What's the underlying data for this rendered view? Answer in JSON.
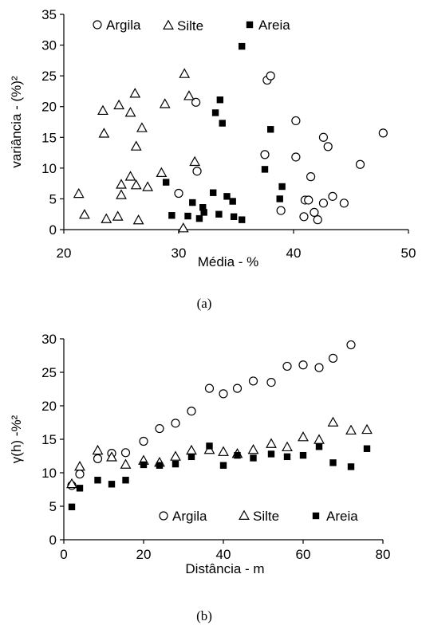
{
  "chart_data": [
    {
      "type": "scatter",
      "caption": "(a)",
      "xlabel": "Média - %",
      "ylabel": "variância - (%)²",
      "xlim": [
        20,
        50
      ],
      "ylim": [
        0,
        35
      ],
      "xticks": [
        20,
        30,
        40,
        50
      ],
      "yticks": [
        0,
        5,
        10,
        15,
        20,
        25,
        30,
        35
      ],
      "grid": false,
      "legend_position": "top",
      "series": [
        {
          "name": "Argila",
          "marker": "open-circle",
          "points": [
            [
              31.5,
              20.7
            ],
            [
              37.7,
              24.3
            ],
            [
              38.0,
              25.0
            ],
            [
              40.2,
              17.7
            ],
            [
              37.5,
              12.2
            ],
            [
              40.2,
              11.8
            ],
            [
              42.6,
              15.0
            ],
            [
              43.0,
              13.5
            ],
            [
              47.8,
              15.7
            ],
            [
              30.0,
              5.9
            ],
            [
              31.6,
              9.5
            ],
            [
              38.9,
              3.1
            ],
            [
              41.0,
              4.8
            ],
            [
              41.3,
              4.8
            ],
            [
              41.5,
              8.6
            ],
            [
              41.8,
              2.8
            ],
            [
              42.6,
              4.3
            ],
            [
              43.4,
              5.4
            ],
            [
              44.4,
              4.3
            ],
            [
              45.8,
              10.6
            ],
            [
              40.9,
              2.1
            ],
            [
              42.1,
              1.6
            ]
          ]
        },
        {
          "name": "Silte",
          "marker": "open-triangle",
          "points": [
            [
              21.3,
              5.8
            ],
            [
              21.8,
              2.4
            ],
            [
              23.4,
              19.3
            ],
            [
              23.5,
              15.6
            ],
            [
              23.7,
              1.7
            ],
            [
              24.7,
              2.1
            ],
            [
              24.8,
              20.2
            ],
            [
              25.0,
              7.3
            ],
            [
              25.0,
              5.6
            ],
            [
              25.8,
              19.0
            ],
            [
              25.8,
              8.6
            ],
            [
              26.2,
              22.1
            ],
            [
              26.3,
              7.2
            ],
            [
              26.3,
              13.5
            ],
            [
              26.5,
              1.5
            ],
            [
              26.8,
              16.5
            ],
            [
              27.3,
              6.9
            ],
            [
              28.5,
              9.2
            ],
            [
              28.8,
              20.4
            ],
            [
              30.5,
              25.3
            ],
            [
              30.9,
              21.7
            ],
            [
              31.4,
              11.0
            ],
            [
              30.4,
              0.2
            ]
          ]
        },
        {
          "name": "Areia",
          "marker": "filled-square",
          "points": [
            [
              28.9,
              7.7
            ],
            [
              29.4,
              2.3
            ],
            [
              30.8,
              2.2
            ],
            [
              31.2,
              4.4
            ],
            [
              31.8,
              1.8
            ],
            [
              32.1,
              3.6
            ],
            [
              32.2,
              2.8
            ],
            [
              33.0,
              6.0
            ],
            [
              33.2,
              19.0
            ],
            [
              33.5,
              2.5
            ],
            [
              33.6,
              21.1
            ],
            [
              33.8,
              17.3
            ],
            [
              34.2,
              5.4
            ],
            [
              34.7,
              4.6
            ],
            [
              34.8,
              2.1
            ],
            [
              35.5,
              1.6
            ],
            [
              35.5,
              29.8
            ],
            [
              37.5,
              9.8
            ],
            [
              38.0,
              16.3
            ],
            [
              38.8,
              5.0
            ],
            [
              39.0,
              7.0
            ]
          ]
        }
      ]
    },
    {
      "type": "scatter",
      "caption": "(b)",
      "xlabel": "Distância - m",
      "ylabel": "γ(h) -%²",
      "xlim": [
        0,
        80
      ],
      "ylim": [
        0,
        30
      ],
      "xticks": [
        0,
        20,
        40,
        60,
        80
      ],
      "yticks": [
        0,
        5,
        10,
        15,
        20,
        25,
        30
      ],
      "grid": false,
      "legend_position": "bottom-right",
      "series": [
        {
          "name": "Argila",
          "marker": "open-circle",
          "points": [
            [
              2,
              8.1
            ],
            [
              4,
              9.8
            ],
            [
              8.5,
              12.1
            ],
            [
              12,
              12.9
            ],
            [
              15.5,
              13.0
            ],
            [
              20,
              14.7
            ],
            [
              24,
              16.6
            ],
            [
              28,
              17.4
            ],
            [
              32,
              19.2
            ],
            [
              36.5,
              22.6
            ],
            [
              40,
              21.8
            ],
            [
              43.5,
              22.6
            ],
            [
              47.5,
              23.7
            ],
            [
              52,
              23.5
            ],
            [
              56,
              25.9
            ],
            [
              60,
              26.1
            ],
            [
              64,
              25.7
            ],
            [
              67.5,
              27.1
            ],
            [
              72,
              29.1
            ]
          ]
        },
        {
          "name": "Silte",
          "marker": "open-triangle",
          "points": [
            [
              2,
              8.3
            ],
            [
              4,
              10.9
            ],
            [
              8.5,
              13.3
            ],
            [
              12,
              12.3
            ],
            [
              15.5,
              11.2
            ],
            [
              20,
              11.8
            ],
            [
              24,
              11.5
            ],
            [
              28,
              12.4
            ],
            [
              32,
              13.3
            ],
            [
              36.5,
              13.4
            ],
            [
              40,
              13.1
            ],
            [
              43.5,
              12.8
            ],
            [
              47.5,
              13.4
            ],
            [
              52,
              14.3
            ],
            [
              56,
              13.8
            ],
            [
              60,
              15.3
            ],
            [
              64,
              14.9
            ],
            [
              67.5,
              17.5
            ],
            [
              72,
              16.3
            ],
            [
              76,
              16.4
            ]
          ]
        },
        {
          "name": "Areia",
          "marker": "filled-square",
          "points": [
            [
              2,
              4.9
            ],
            [
              4,
              7.7
            ],
            [
              8.5,
              8.9
            ],
            [
              12,
              8.3
            ],
            [
              15.5,
              8.9
            ],
            [
              20,
              11.2
            ],
            [
              24,
              11.1
            ],
            [
              28,
              11.3
            ],
            [
              32,
              12.4
            ],
            [
              36.5,
              14.0
            ],
            [
              40,
              11.1
            ],
            [
              43.5,
              12.6
            ],
            [
              47.5,
              12.2
            ],
            [
              52,
              12.8
            ],
            [
              56,
              12.4
            ],
            [
              60,
              12.6
            ],
            [
              64,
              13.9
            ],
            [
              67.5,
              11.5
            ],
            [
              72,
              10.9
            ],
            [
              76,
              13.6
            ]
          ]
        }
      ]
    }
  ]
}
